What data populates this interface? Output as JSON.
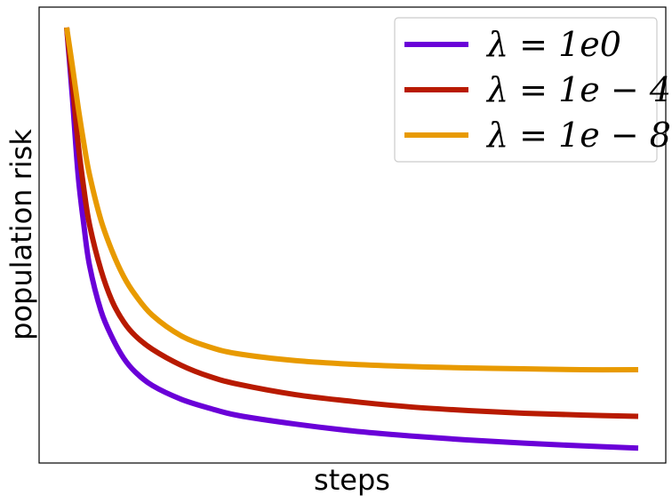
{
  "chart_data": {
    "type": "line",
    "title": "",
    "xlabel": "steps",
    "ylabel": "population risk",
    "xlim": [
      0,
      1
    ],
    "ylim": [
      0,
      1
    ],
    "grid": false,
    "legend": {
      "placement": "top-right"
    },
    "series": [
      {
        "name": "λ = 1e0",
        "color": "#6a00d8",
        "x": [
          0,
          0.01,
          0.02,
          0.03,
          0.04,
          0.06,
          0.08,
          0.1,
          0.12,
          0.15,
          0.2,
          0.25,
          0.3,
          0.4,
          0.5,
          0.6,
          0.7,
          0.8,
          0.9,
          1.0
        ],
        "y": [
          0.955,
          0.8,
          0.63,
          0.52,
          0.43,
          0.33,
          0.27,
          0.225,
          0.195,
          0.165,
          0.135,
          0.115,
          0.099,
          0.08,
          0.065,
          0.054,
          0.045,
          0.038,
          0.032,
          0.027
        ]
      },
      {
        "name": "λ = 1e − 4",
        "color": "#b81a00",
        "x": [
          0,
          0.01,
          0.02,
          0.03,
          0.04,
          0.06,
          0.08,
          0.1,
          0.12,
          0.15,
          0.2,
          0.25,
          0.3,
          0.4,
          0.5,
          0.6,
          0.7,
          0.8,
          0.9,
          1.0
        ],
        "y": [
          0.955,
          0.83,
          0.7,
          0.6,
          0.52,
          0.42,
          0.35,
          0.305,
          0.275,
          0.245,
          0.21,
          0.185,
          0.168,
          0.145,
          0.13,
          0.118,
          0.11,
          0.104,
          0.1,
          0.097
        ]
      },
      {
        "name": "λ = 1e − 8",
        "color": "#e89a00",
        "x": [
          0,
          0.01,
          0.02,
          0.03,
          0.04,
          0.06,
          0.08,
          0.1,
          0.12,
          0.15,
          0.2,
          0.25,
          0.3,
          0.4,
          0.5,
          0.6,
          0.7,
          0.8,
          0.9,
          1.0
        ],
        "y": [
          0.955,
          0.87,
          0.78,
          0.7,
          0.63,
          0.53,
          0.46,
          0.405,
          0.365,
          0.32,
          0.275,
          0.25,
          0.235,
          0.22,
          0.212,
          0.207,
          0.204,
          0.202,
          0.2,
          0.2
        ]
      }
    ]
  }
}
